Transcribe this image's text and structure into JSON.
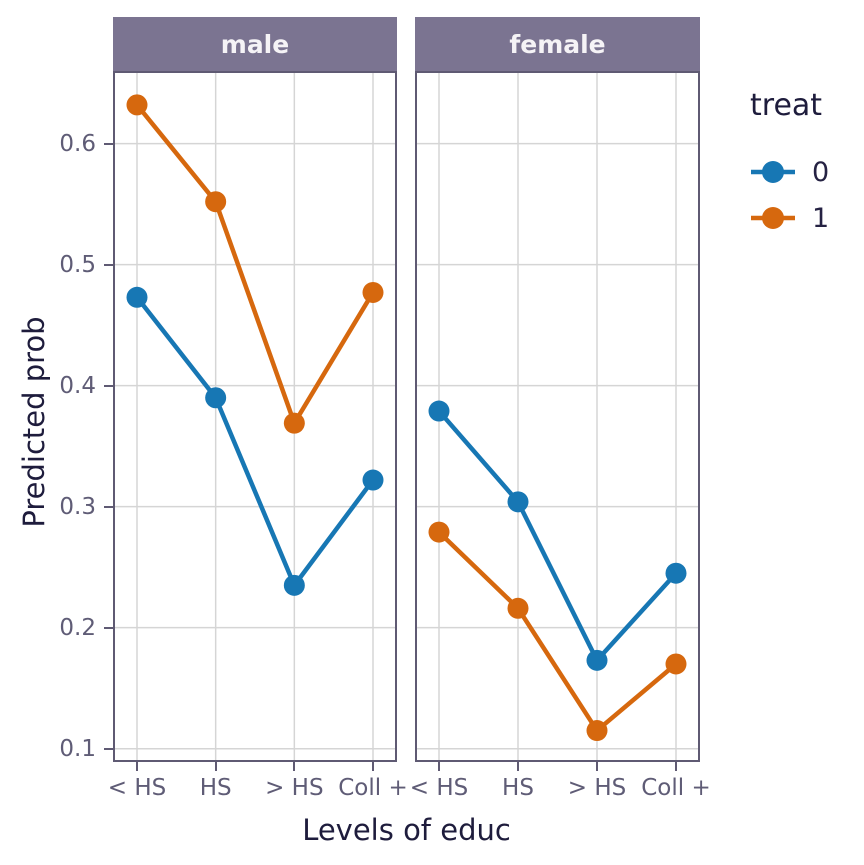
{
  "chart_data": {
    "type": "line",
    "xlabel": "Levels of educ",
    "ylabel": "Predicted prob",
    "categories": [
      "< HS",
      "HS",
      "> HS",
      "Coll +"
    ],
    "yticks": [
      0.1,
      0.2,
      0.3,
      0.4,
      0.5,
      0.6
    ],
    "ytick_labels": [
      "0.1",
      "0.2",
      "0.3",
      "0.4",
      "0.5",
      "0.6"
    ],
    "ylim": [
      0.089,
      0.66
    ],
    "grid": "major-only",
    "legend_title": "treat",
    "legend_position": "right",
    "panels": [
      {
        "label": "male",
        "series": [
          {
            "name": "0",
            "color": "#1777b4",
            "values": [
              0.473,
              0.39,
              0.235,
              0.322
            ]
          },
          {
            "name": "1",
            "color": "#d6680e",
            "values": [
              0.632,
              0.552,
              0.369,
              0.477
            ]
          }
        ]
      },
      {
        "label": "female",
        "series": [
          {
            "name": "0",
            "color": "#1777b4",
            "values": [
              0.379,
              0.304,
              0.173,
              0.245
            ]
          },
          {
            "name": "1",
            "color": "#d6680e",
            "values": [
              0.279,
              0.216,
              0.115,
              0.17
            ]
          }
        ]
      }
    ],
    "legend_items": [
      {
        "label": "0",
        "color": "#1777b4"
      },
      {
        "label": "1",
        "color": "#d6680e"
      }
    ]
  },
  "colors": {
    "series_blue": "#1777b4",
    "series_orange": "#d6680e",
    "strip_background": "#7b7491",
    "strip_text": "#f5f3f6",
    "gridline": "#d5d5d5",
    "panel_border": "#5f5a73",
    "axis_tick_text": "#5f5c76",
    "axis_title_text": "#1e1c3c",
    "background": "#ffffff"
  }
}
